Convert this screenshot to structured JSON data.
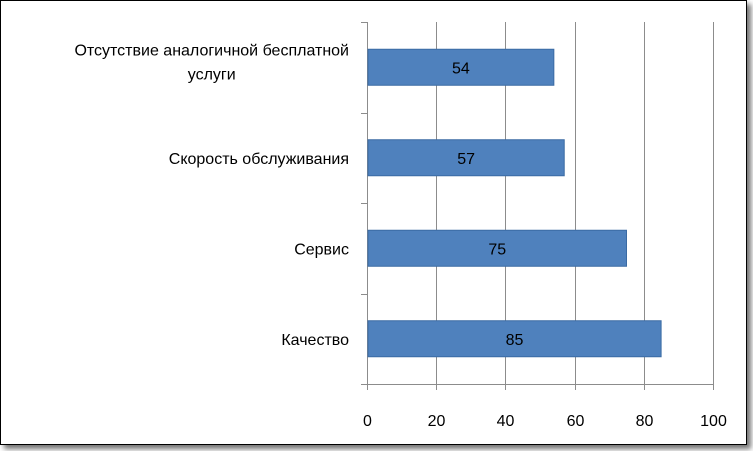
{
  "chart_data": {
    "type": "bar",
    "orientation": "horizontal",
    "title": "",
    "xlabel": "",
    "ylabel": "",
    "categories": [
      [
        "Отсутствие аналогичной бесплатной",
        "услуги"
      ],
      [
        "Скорость обслуживания"
      ],
      [
        "Сервис"
      ],
      [
        "Качество"
      ]
    ],
    "values": [
      54,
      57,
      75,
      85
    ],
    "xlim": [
      0,
      100
    ],
    "x_ticks": [
      0,
      20,
      40,
      60,
      80,
      100
    ],
    "grid": "vertical",
    "legend": "none",
    "bar_color": "#4f81bd",
    "bar_border_color": "#3a6aa3"
  }
}
